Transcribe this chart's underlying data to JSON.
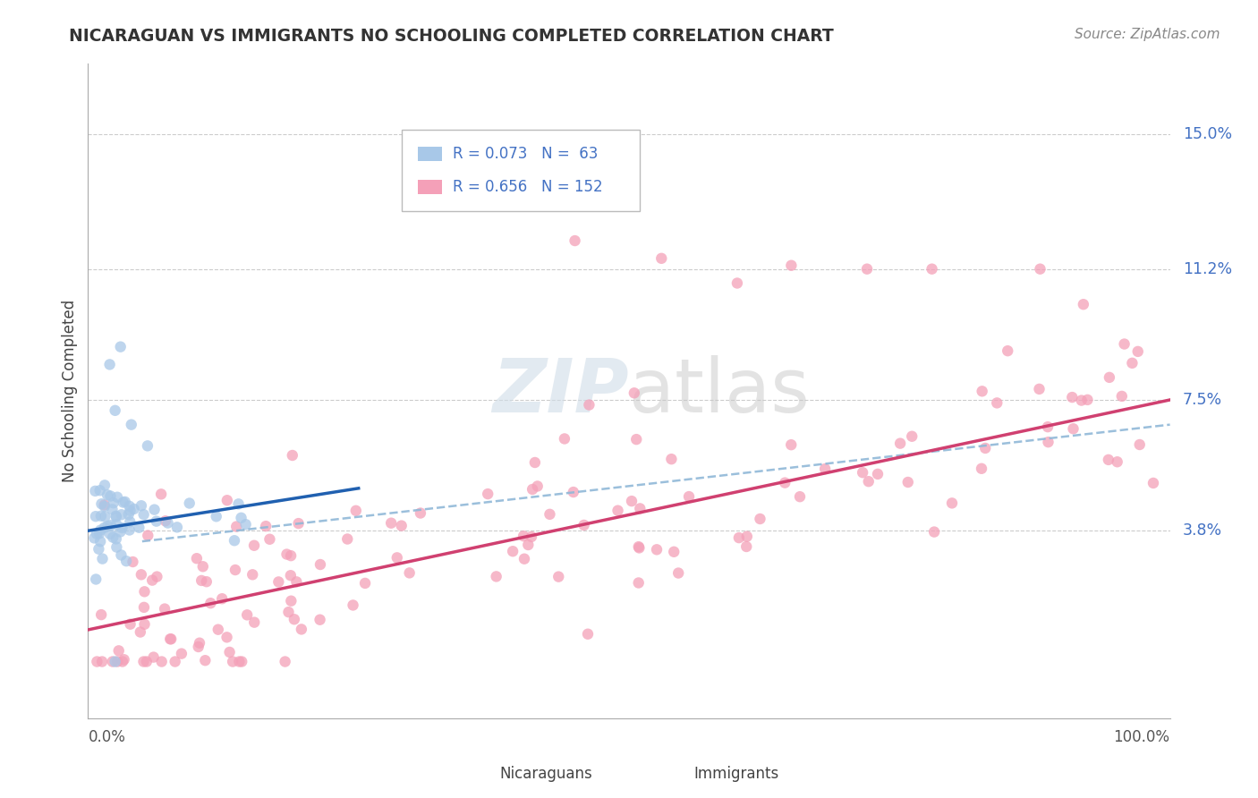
{
  "title": "NICARAGUAN VS IMMIGRANTS NO SCHOOLING COMPLETED CORRELATION CHART",
  "source": "Source: ZipAtlas.com",
  "ylabel": "No Schooling Completed",
  "legend_label1": "Nicaraguans",
  "legend_label2": "Immigrants",
  "ytick_labels": [
    "15.0%",
    "11.2%",
    "7.5%",
    "3.8%"
  ],
  "ytick_values": [
    0.15,
    0.112,
    0.075,
    0.038
  ],
  "xlim": [
    0.0,
    1.0
  ],
  "ylim": [
    -0.015,
    0.17
  ],
  "color_blue": "#a8c8e8",
  "color_pink": "#f4a0b8",
  "color_blue_line": "#2060b0",
  "color_pink_line": "#d04070",
  "color_dashed": "#90b8d8",
  "background_color": "#ffffff",
  "grid_color": "#cccccc",
  "label_color": "#4472C4",
  "title_color": "#333333"
}
